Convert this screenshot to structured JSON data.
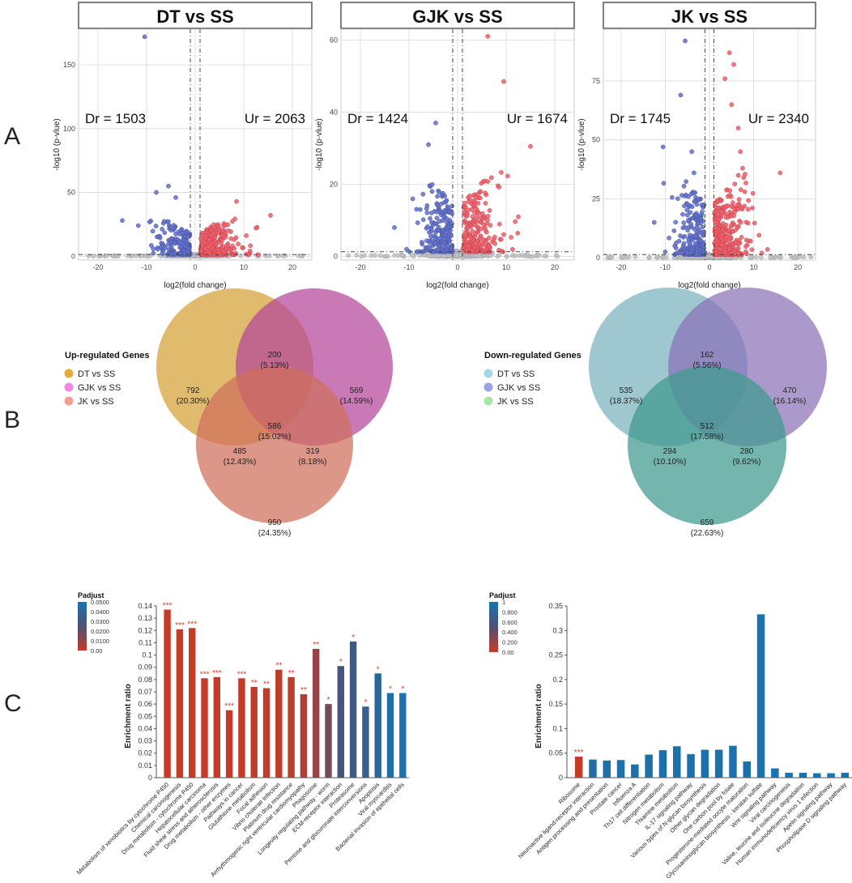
{
  "figure": {
    "panels": [
      "A",
      "B",
      "C"
    ],
    "colors": {
      "up": "#ee5f6a",
      "down": "#6270c9",
      "ns": "#bfc0c4",
      "upEdge": "#c2444f",
      "downEdge": "#4653a3",
      "venn_up": [
        "#d4a134",
        "#b4459a",
        "#cf6f5c"
      ],
      "venn_down": [
        "#79b2bd",
        "#8a72b8",
        "#3e9a8f"
      ],
      "legend_up": [
        "#e7ab3c",
        "#ee88e0",
        "#f2a090"
      ],
      "legend_down": [
        "#a3d6e6",
        "#9aa2e6",
        "#a7e6a5"
      ],
      "grid": "#d9d9d9",
      "sig": "#d43d2a",
      "title_border": "#555555"
    }
  },
  "chart_data": [
    {
      "type": "scatter",
      "chart": "volcano",
      "title": "DT vs SS",
      "xlabel": "log2(fold change)",
      "ylabel": "-log10 (p-vlue)",
      "xlim": [
        -24,
        24
      ],
      "ylim": [
        -3,
        178
      ],
      "xticks": [
        -20,
        -10,
        0,
        10,
        20
      ],
      "yticks": [
        0,
        50,
        100,
        150
      ],
      "annotations": {
        "left": "Dr = 1503",
        "right": "Ur = 2063"
      },
      "down_count": 1503,
      "up_count": 2063,
      "fc_threshold": 1,
      "p_threshold": 1.3,
      "max_y": 32,
      "outliers": [
        [
          -10.4,
          172
        ],
        [
          -8,
          50
        ],
        [
          -5.5,
          55
        ],
        [
          -4,
          46
        ],
        [
          -15,
          28
        ],
        [
          8.5,
          43
        ],
        [
          15.5,
          32
        ],
        [
          -11.7,
          24
        ],
        [
          12.5,
          22
        ]
      ]
    },
    {
      "type": "scatter",
      "chart": "volcano",
      "title": "GJK vs SS",
      "xlabel": "log2(fold change)",
      "ylabel": "-log10 (p-vlue)",
      "xlim": [
        -24,
        24
      ],
      "ylim": [
        -1,
        63
      ],
      "xticks": [
        -20,
        -10,
        0,
        10,
        20
      ],
      "yticks": [
        0,
        20,
        40,
        60
      ],
      "annotations": {
        "left": "Dr = 1424",
        "right": "Ur = 1674"
      },
      "down_count": 1424,
      "up_count": 1674,
      "fc_threshold": 1,
      "p_threshold": 1.3,
      "max_y": 24,
      "outliers": [
        [
          6.2,
          61
        ],
        [
          9.5,
          48.5
        ],
        [
          -4.5,
          37
        ],
        [
          -6,
          31
        ],
        [
          15,
          30.5
        ],
        [
          -13,
          8
        ],
        [
          12.5,
          11
        ],
        [
          -10.5,
          2
        ]
      ]
    },
    {
      "type": "scatter",
      "chart": "volcano",
      "title": "JK vs SS",
      "xlabel": "log2(fold change)",
      "ylabel": "-log10 (p-vlue)",
      "xlim": [
        -24,
        24
      ],
      "ylim": [
        -1,
        97
      ],
      "xticks": [
        -20,
        -10,
        0,
        10,
        20
      ],
      "yticks": [
        0,
        25,
        50,
        75
      ],
      "annotations": {
        "left": "Dr = 1745",
        "right": "Ur = 2340"
      },
      "down_count": 1745,
      "up_count": 2340,
      "fc_threshold": 1,
      "p_threshold": 1.3,
      "max_y": 38,
      "outliers": [
        [
          -5.5,
          92
        ],
        [
          -6.5,
          69
        ],
        [
          4.5,
          87
        ],
        [
          5.5,
          82
        ],
        [
          3.5,
          76
        ],
        [
          5,
          65
        ],
        [
          6.5,
          55
        ],
        [
          7,
          45
        ],
        [
          7.5,
          38
        ],
        [
          8,
          28
        ],
        [
          16,
          36
        ],
        [
          -10.5,
          47
        ],
        [
          -4,
          45
        ],
        [
          -12.5,
          15
        ],
        [
          -3.5,
          36
        ]
      ]
    },
    {
      "type": "venn",
      "title": "Up-regulated Genes",
      "sets": [
        "DT vs SS",
        "GJK vs SS",
        "JK vs SS"
      ],
      "regions": [
        {
          "id": "a",
          "value": "792",
          "pct": "(20.30%)"
        },
        {
          "id": "ab",
          "value": "200",
          "pct": "(5.13%)"
        },
        {
          "id": "b",
          "value": "569",
          "pct": "(14.59%)"
        },
        {
          "id": "abc",
          "value": "586",
          "pct": "(15.02%)"
        },
        {
          "id": "ac",
          "value": "485",
          "pct": "(12.43%)"
        },
        {
          "id": "bc",
          "value": "319",
          "pct": "(8.18%)"
        },
        {
          "id": "c",
          "value": "950",
          "pct": "(24.35%)"
        }
      ]
    },
    {
      "type": "venn",
      "title": "Down-regulated Genes",
      "sets": [
        "DT vs SS",
        "GJK vs SS",
        "JK vs SS"
      ],
      "regions": [
        {
          "id": "a",
          "value": "535",
          "pct": "(18.37%)"
        },
        {
          "id": "ab",
          "value": "162",
          "pct": "(5.56%)"
        },
        {
          "id": "b",
          "value": "470",
          "pct": "(16.14%)"
        },
        {
          "id": "abc",
          "value": "512",
          "pct": "(17.58%)"
        },
        {
          "id": "ac",
          "value": "294",
          "pct": "(10.10%)"
        },
        {
          "id": "bc",
          "value": "280",
          "pct": "(9.62%)"
        },
        {
          "id": "c",
          "value": "659",
          "pct": "(22.63%)"
        }
      ]
    },
    {
      "type": "bar",
      "title": "",
      "ylabel": "Enrichment ratio",
      "ylim": [
        0,
        0.14
      ],
      "yticks": [
        "0",
        "0.01",
        "0.02",
        "0.03",
        "0.04",
        "0.05",
        "0.06",
        "0.07",
        "0.08",
        "0.09",
        "0.1",
        "0.11",
        "0.12",
        "0.13",
        "0.14"
      ],
      "legend_title": "Padjust",
      "colorbar_ticks": [
        "0.0500",
        "0.0400",
        "0.0300",
        "0.0200",
        "0.0100",
        "0.00"
      ],
      "colorbar_range": [
        0,
        0.05
      ],
      "categories": [
        "Metabolism of xenobiotics by cytochrome P450",
        "Chemical carcinogenesis",
        "Drug metabolism - cytochrome P450",
        "Hepatocellular carcinoma",
        "Fluid shear stress and atherosclerosis",
        "Drug metabolism - other enzymes",
        "Pathways in cancer",
        "Glutathione metabolism",
        "Focal adhesion",
        "Vibrio cholerae infection",
        "Platinum drug resistance",
        "Arrhythmogenic right ventricular cardiomyopathy",
        "Phagosome",
        "Longevity regulating pathway - worm",
        "ECM-receptor interaction",
        "Proteasome",
        "Pentose and glucuronate interconversions",
        "Apoptosis",
        "Viral myocarditis",
        "Bacterial invasion of epithelial cells"
      ],
      "values": [
        0.137,
        0.121,
        0.122,
        0.081,
        0.082,
        0.055,
        0.081,
        0.074,
        0.073,
        0.088,
        0.082,
        0.068,
        0.105,
        0.06,
        0.091,
        0.111,
        0.058,
        0.085,
        0.069,
        0.069
      ],
      "padjust": [
        0.0001,
        0.0001,
        0.0001,
        0.0002,
        0.0002,
        0.0003,
        0.0004,
        0.001,
        0.0012,
        0.0015,
        0.002,
        0.004,
        0.01,
        0.017,
        0.028,
        0.032,
        0.036,
        0.042,
        0.048,
        0.049
      ],
      "stars": [
        "***",
        "***",
        "***",
        "***",
        "***",
        "***",
        "***",
        "**",
        "**",
        "**",
        "**",
        "**",
        "**",
        "*",
        "*",
        "*",
        "*",
        "*",
        "*",
        "*"
      ]
    },
    {
      "type": "bar",
      "title": "",
      "ylabel": "Enrichment ratio",
      "ylim": [
        0,
        0.35
      ],
      "yticks": [
        "0",
        "0.05",
        "0.1",
        "0.15",
        "0.2",
        "0.25",
        "0.3",
        "0.35"
      ],
      "legend_title": "Padjust",
      "colorbar_ticks": [
        "1",
        "0.800",
        "0.600",
        "0.400",
        "0.200",
        "0.00"
      ],
      "colorbar_range": [
        0,
        1
      ],
      "categories": [
        "Ribosome",
        "Neuroactive ligand-receptor interaction",
        "Antigen processing and presentation",
        "Prostate cancer",
        "Influenza A",
        "Th17 cell differentiation",
        "Nitrogen metabolism",
        "Thiamine metabolism",
        "IL-17 signaling pathway",
        "Various types of N-glycan biosynthesis",
        "Other glycan degradation",
        "One carbon pool by folate",
        "Progesterone-mediated oocyte maturation",
        "Glycosaminoglycan biosynthesis - keratan sulfate",
        "Wnt signaling pathway",
        "Viral carcinogenesis",
        "Valine, leucine and isoleucine degradation",
        "Human immunodeficiency virus 1 infection",
        "Apelin signaling pathway",
        "Phospholipase D signaling pathway"
      ],
      "values": [
        0.043,
        0.037,
        0.035,
        0.036,
        0.027,
        0.047,
        0.056,
        0.064,
        0.048,
        0.057,
        0.057,
        0.065,
        0.033,
        0.333,
        0.019,
        0.01,
        0.01,
        0.009,
        0.009,
        0.01
      ],
      "padjust": [
        0.001,
        0.93,
        0.94,
        0.95,
        0.95,
        0.95,
        0.95,
        0.95,
        0.95,
        0.95,
        0.95,
        0.95,
        0.96,
        1,
        1,
        1,
        1,
        1,
        1,
        1
      ],
      "stars": [
        "***",
        "",
        "",
        "",
        "",
        "",
        "",
        "",
        "",
        "",
        "",
        "",
        "",
        "",
        "",
        "",
        "",
        "",
        "",
        ""
      ]
    }
  ]
}
